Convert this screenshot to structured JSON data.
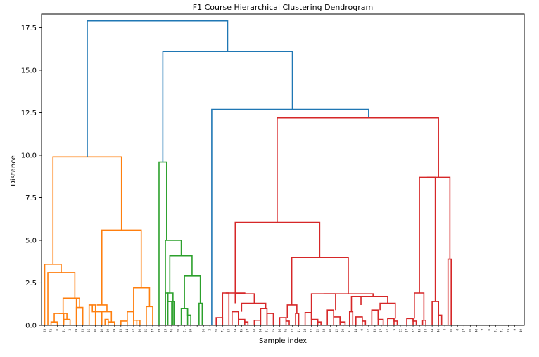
{
  "chart_data": {
    "type": "dendrogram",
    "title": "F1 Course Hierarchical Clustering Dendrogram",
    "xlabel": "Sample index",
    "ylabel": "Distance",
    "ylim": [
      0,
      18.3
    ],
    "yticks": [
      0.0,
      2.5,
      5.0,
      7.5,
      10.0,
      12.5,
      15.0,
      17.5
    ],
    "ytick_labels": [
      "0.0",
      "2.5",
      "5.0",
      "7.5",
      "10.0",
      "12.5",
      "15.0",
      "17.5"
    ],
    "leaf_labels": [
      "25",
      "73",
      "0",
      "51",
      "3",
      "29",
      "23",
      "36",
      "80",
      "40",
      "39",
      "19",
      "53",
      "14",
      "52",
      "50",
      "35",
      "47",
      "59",
      "13",
      "76",
      "20",
      "21",
      "69",
      "1",
      "66",
      "2",
      "26",
      "71",
      "63",
      "74",
      "45",
      "57",
      "18",
      "34",
      "61",
      "65",
      "56",
      "70",
      "72",
      "11",
      "58",
      "42",
      "62",
      "28",
      "30",
      "12",
      "69",
      "31",
      "44",
      "9",
      "67",
      "33",
      "37",
      "52",
      "5",
      "22",
      "27",
      "32",
      "43",
      "24",
      "54",
      "46",
      "4",
      "16",
      "8",
      "17",
      "10",
      "48",
      "7",
      "6",
      "31",
      "41",
      "75",
      "9",
      "49"
    ],
    "link_colors": {
      "cluster_a": "#ff7f0e",
      "cluster_b": "#2ca02c",
      "cluster_c": "#d62728",
      "above_threshold": "#1f77b4"
    },
    "links": [
      {
        "x": [
          0.6,
          0.6,
          1.4,
          1.4
        ],
        "y": [
          0,
          0.2,
          0.2,
          0
        ],
        "color": "#ff7f0e"
      },
      {
        "x": [
          1.0,
          1.0,
          2.6,
          2.6
        ],
        "y": [
          0.2,
          0.7,
          0.7,
          0
        ],
        "color": "#ff7f0e"
      },
      {
        "x": [
          2.6,
          2.6,
          3.3,
          3.3
        ],
        "y": [
          0,
          0.35,
          0.35,
          0
        ],
        "color": "#ff7f0e"
      },
      {
        "x": [
          1.8,
          1.8,
          3.8,
          3.8
        ],
        "y": [
          0.7,
          1.6,
          1.6,
          0
        ],
        "color": "#ff7f0e"
      },
      {
        "x": [
          4.3,
          4.3,
          4.6,
          4.6
        ],
        "y": [
          0,
          1.05,
          1.05,
          0
        ],
        "color": "#ff7f0e"
      },
      {
        "x": [
          2.6,
          2.6,
          4.3,
          4.3
        ],
        "y": [
          1.6,
          1.6,
          1.6,
          1.05
        ],
        "color": "#ff7f0e"
      },
      {
        "x": [
          0.6,
          0.6,
          4.3,
          4.3
        ],
        "y": [
          0,
          3.1,
          3.1,
          1.6
        ],
        "color": "#ff7f0e"
      },
      {
        "x": [
          0.2,
          0.2,
          2.4,
          2.4
        ],
        "y": [
          0,
          3.6,
          3.6,
          3.1
        ],
        "color": "#ff7f0e"
      },
      {
        "x": [
          5.1,
          5.1,
          5.9,
          5.9
        ],
        "y": [
          0,
          1.2,
          1.2,
          0
        ],
        "color": "#ff7f0e"
      },
      {
        "x": [
          5.5,
          5.5,
          6.5,
          6.5
        ],
        "y": [
          1.2,
          0.8,
          0.8,
          0
        ],
        "color": "#ff7f0e"
      },
      {
        "x": [
          6.5,
          6.5,
          7.2,
          7.2
        ],
        "y": [
          0,
          0.35,
          0.35,
          0
        ],
        "color": "#ff7f0e"
      },
      {
        "x": [
          6.9,
          6.9,
          7.7,
          7.7
        ],
        "y": [
          0.35,
          0.2,
          0.2,
          0
        ],
        "color": "#ff7f0e"
      },
      {
        "x": [
          5.5,
          5.5,
          7.2,
          7.2
        ],
        "y": [
          1.2,
          1.2,
          1.2,
          0.35
        ],
        "color": "#ff7f0e"
      },
      {
        "x": [
          8.3,
          8.3,
          9.1,
          9.1
        ],
        "y": [
          0,
          0.25,
          0.25,
          0
        ],
        "color": "#ff7f0e"
      },
      {
        "x": [
          8.7,
          8.7,
          9.6,
          9.6
        ],
        "y": [
          0.25,
          0.8,
          0.8,
          0
        ],
        "color": "#ff7f0e"
      },
      {
        "x": [
          9.6,
          9.6,
          10.3,
          10.3
        ],
        "y": [
          0.3,
          0.3,
          0.3,
          0
        ],
        "color": "#ff7f0e"
      },
      {
        "x": [
          10.3,
          10.3,
          11.0,
          11.0
        ],
        "y": [
          0,
          2.2,
          2.2,
          1.1
        ],
        "color": "#ff7f0e"
      },
      {
        "x": [
          9.2,
          9.2,
          10.6,
          10.6
        ],
        "y": [
          0.8,
          2.2,
          2.2,
          2.2
        ],
        "color": "#ff7f0e"
      },
      {
        "x": [
          6.3,
          6.3,
          10.0,
          10.0
        ],
        "y": [
          1.2,
          5.6,
          5.6,
          2.2
        ],
        "color": "#ff7f0e"
      },
      {
        "x": [
          1.3,
          1.3,
          8.2,
          8.2
        ],
        "y": [
          3.6,
          9.9,
          9.9,
          5.6
        ],
        "color": "#ff7f0e"
      },
      {
        "x": [
          12.0,
          12.0,
          13.0,
          13.0
        ],
        "y": [
          0,
          9.6,
          9.6,
          5.0
        ],
        "color": "#2ca02c"
      },
      {
        "x": [
          13.0,
          13.0,
          14.2,
          14.2
        ],
        "y": [
          5.0,
          5.0,
          5.0,
          4.1
        ],
        "color": "#2ca02c"
      },
      {
        "x": [
          13.6,
          13.6,
          15.2,
          15.2
        ],
        "y": [
          4.1,
          4.1,
          4.1,
          2.9
        ],
        "color": "#2ca02c"
      },
      {
        "x": [
          13.2,
          13.2,
          13.9,
          13.9
        ],
        "y": [
          0,
          1.9,
          1.9,
          1.4
        ],
        "color": "#2ca02c"
      },
      {
        "x": [
          13.9,
          13.9,
          14.2,
          14.2
        ],
        "y": [
          1.4,
          1.4,
          1.4,
          0
        ],
        "color": "#2ca02c"
      },
      {
        "x": [
          13.55,
          13.55,
          13.9,
          13.9
        ],
        "y": [
          1.9,
          4.1,
          4.1,
          4.1
        ],
        "color": "#2ca02c"
      },
      {
        "x": [
          14.8,
          14.8,
          15.3,
          15.3
        ],
        "y": [
          0,
          1.0,
          1.0,
          0.6
        ],
        "color": "#2ca02c"
      },
      {
        "x": [
          15.1,
          15.1,
          15.8,
          15.8
        ],
        "y": [
          1.0,
          2.9,
          2.9,
          1.3
        ],
        "color": "#2ca02c"
      },
      {
        "x": [
          16.5,
          16.5,
          16.5,
          16.5
        ],
        "y": [
          0,
          12.7,
          12.7,
          12.7
        ],
        "color": "#1f77b4"
      }
    ]
  }
}
